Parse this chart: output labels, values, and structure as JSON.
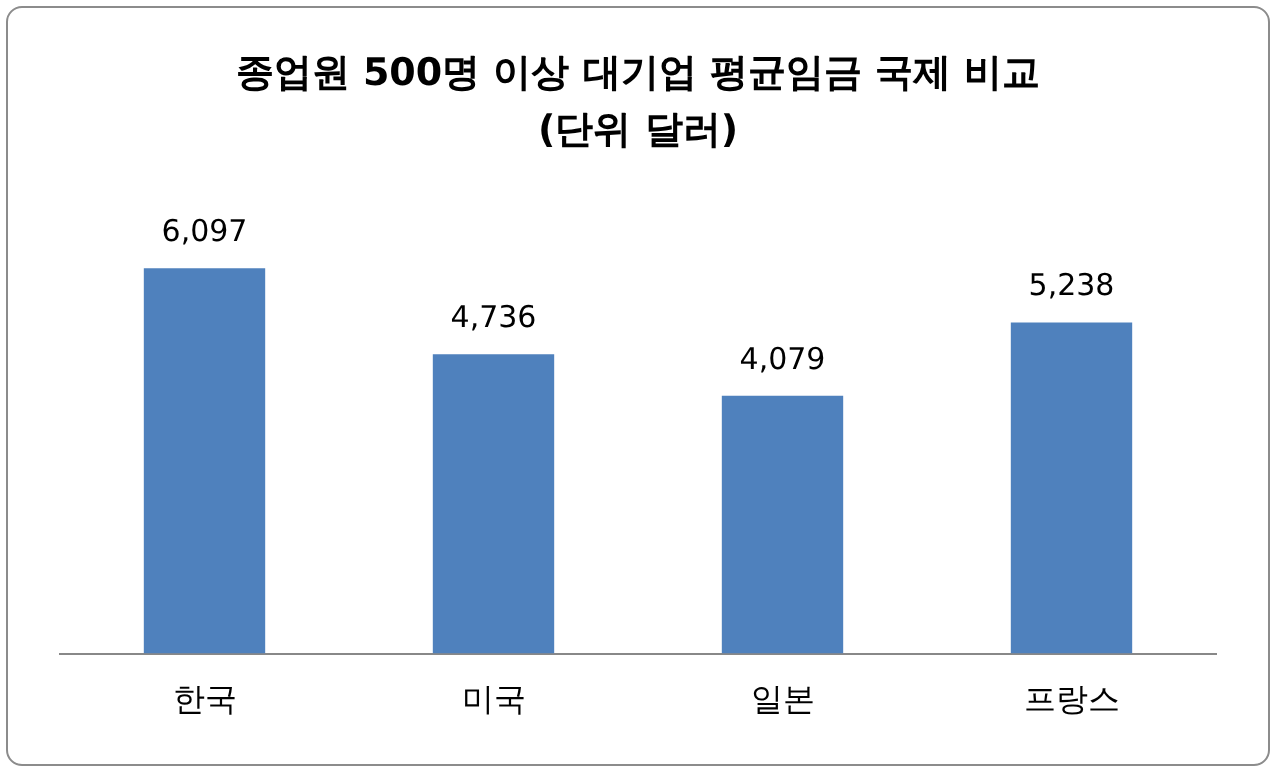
{
  "chart_data": {
    "type": "bar",
    "title": "종업원 500명 이상 대기업 평균임금 국제 비교",
    "subtitle": "(단위 달러)",
    "categories": [
      "한국",
      "미국",
      "일본",
      "프랑스"
    ],
    "values": [
      6097,
      4736,
      4079,
      5238
    ],
    "value_labels": [
      "6,097",
      "4,736",
      "4,079",
      "5,238"
    ],
    "color": "#4f81bd",
    "grid": false,
    "legend": false,
    "tick_labels": "x"
  }
}
